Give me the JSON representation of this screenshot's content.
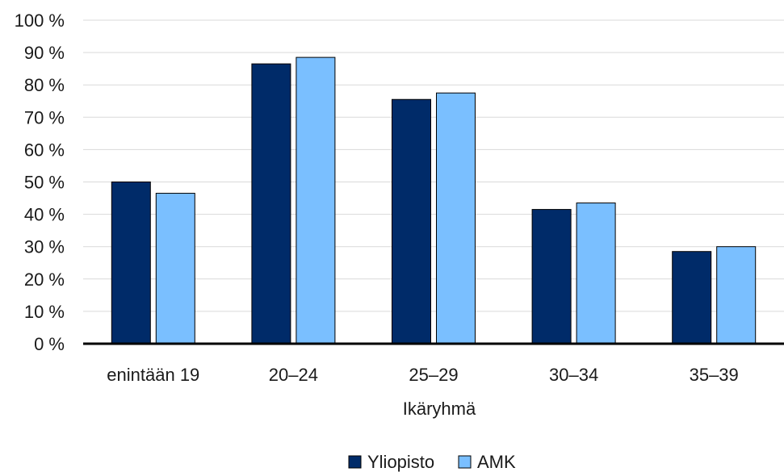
{
  "chart_data": {
    "type": "bar",
    "xlabel": "Ikäryhmä",
    "ylabel": "",
    "categories": [
      "enintään 19",
      "20–24",
      "25–29",
      "30–34",
      "35–39"
    ],
    "series": [
      {
        "name": "Yliopisto",
        "values": [
          50,
          86.5,
          75.5,
          41.5,
          28.5
        ],
        "color": "#002b69"
      },
      {
        "name": "AMK",
        "values": [
          46.5,
          88.5,
          77.5,
          43.5,
          30
        ],
        "color": "#7abfff"
      }
    ],
    "ylim": [
      0,
      100
    ],
    "yticks": [
      0,
      10,
      20,
      30,
      40,
      50,
      60,
      70,
      80,
      90,
      100
    ],
    "ytick_suffix": " %",
    "grid": true,
    "legend_position": "bottom-center"
  }
}
